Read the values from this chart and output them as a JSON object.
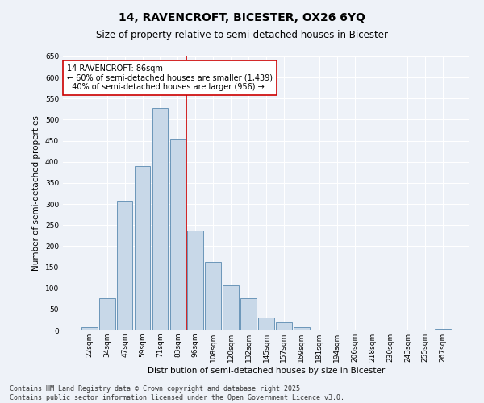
{
  "title": "14, RAVENCROFT, BICESTER, OX26 6YQ",
  "subtitle": "Size of property relative to semi-detached houses in Bicester",
  "xlabel": "Distribution of semi-detached houses by size in Bicester",
  "ylabel": "Number of semi-detached properties",
  "categories": [
    "22sqm",
    "34sqm",
    "47sqm",
    "59sqm",
    "71sqm",
    "83sqm",
    "96sqm",
    "108sqm",
    "120sqm",
    "132sqm",
    "145sqm",
    "157sqm",
    "169sqm",
    "181sqm",
    "194sqm",
    "206sqm",
    "218sqm",
    "230sqm",
    "243sqm",
    "255sqm",
    "267sqm"
  ],
  "values": [
    8,
    76,
    307,
    390,
    527,
    453,
    237,
    162,
    107,
    76,
    30,
    20,
    8,
    0,
    0,
    0,
    0,
    0,
    0,
    0,
    4
  ],
  "bar_color": "#c8d8e8",
  "bar_edge_color": "#5a8ab0",
  "vline_index": 5,
  "vline_color": "#cc0000",
  "annotation_line1": "14 RAVENCROFT: 86sqm",
  "annotation_line2": "← 60% of semi-detached houses are smaller (1,439)",
  "annotation_line3": "  40% of semi-detached houses are larger (956) →",
  "annotation_box_color": "#ffffff",
  "annotation_box_edge_color": "#cc0000",
  "ylim": [
    0,
    650
  ],
  "yticks": [
    0,
    50,
    100,
    150,
    200,
    250,
    300,
    350,
    400,
    450,
    500,
    550,
    600,
    650
  ],
  "footer_text": "Contains HM Land Registry data © Crown copyright and database right 2025.\nContains public sector information licensed under the Open Government Licence v3.0.",
  "bg_color": "#eef2f8",
  "grid_color": "#ffffff",
  "title_fontsize": 10,
  "subtitle_fontsize": 8.5,
  "axis_label_fontsize": 7.5,
  "tick_fontsize": 6.5,
  "annotation_fontsize": 7,
  "footer_fontsize": 6
}
